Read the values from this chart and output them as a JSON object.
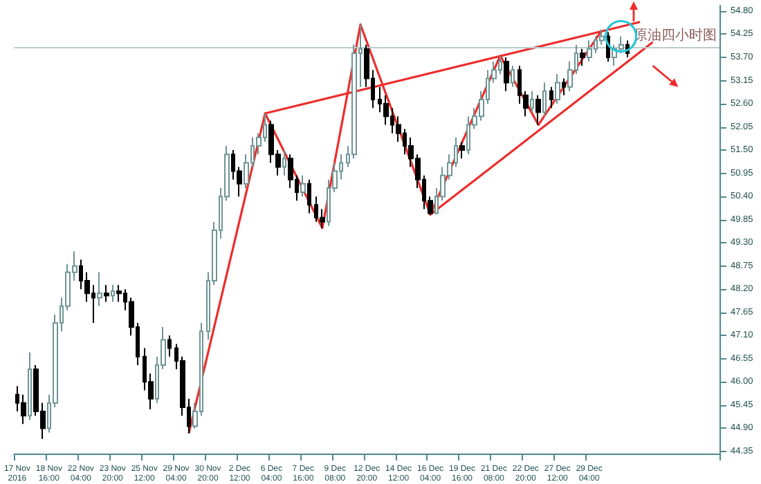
{
  "chart_data": {
    "type": "candlestick",
    "title": "原油四小时图",
    "categories": [
      "17 Nov 2016",
      null,
      null,
      null,
      null,
      "18 Nov 16:00",
      null,
      null,
      null,
      null,
      "22 Nov 04:00",
      null,
      null,
      null,
      null,
      "23 Nov 20:00",
      null,
      null,
      null,
      null,
      "25 Nov 12:00",
      null,
      null,
      null,
      null,
      "29 Nov 04:00",
      null,
      null,
      null,
      null,
      "30 Nov 20:00",
      null,
      null,
      null,
      null,
      "2 Dec 12:00",
      null,
      null,
      null,
      null,
      "6 Dec 04:00",
      null,
      null,
      null,
      null,
      "7 Dec 16:00",
      null,
      null,
      null,
      null,
      "9 Dec 08:00",
      null,
      null,
      null,
      null,
      "12 Dec 20:00",
      null,
      null,
      null,
      null,
      "14 Dec 12:00",
      null,
      null,
      null,
      null,
      "16 Dec 04:00",
      null,
      null,
      null,
      null,
      "19 Dec 16:00",
      null,
      null,
      null,
      null,
      "21 Dec 08:00",
      null,
      null,
      null,
      null,
      "22 Dec 20:00",
      null,
      null,
      null,
      null,
      "27 Dec 12:00",
      null,
      null,
      null,
      null,
      "29 Dec 04:00",
      null,
      null,
      null,
      null,
      null,
      null,
      null,
      null,
      null,
      null,
      null,
      null,
      null,
      null,
      null,
      null,
      null,
      null,
      null,
      null
    ],
    "ohlc": [
      [
        45.7,
        45.9,
        45.3,
        45.5
      ],
      [
        45.5,
        45.7,
        45.0,
        45.2
      ],
      [
        45.2,
        46.7,
        45.1,
        46.3
      ],
      [
        46.3,
        46.4,
        45.2,
        45.3
      ],
      [
        45.3,
        45.5,
        44.65,
        44.9
      ],
      [
        44.9,
        45.7,
        44.8,
        45.5
      ],
      [
        45.5,
        47.6,
        45.4,
        47.4
      ],
      [
        47.4,
        48.0,
        47.2,
        47.8
      ],
      [
        47.8,
        48.8,
        47.7,
        48.6
      ],
      [
        48.6,
        49.1,
        48.4,
        48.75
      ],
      [
        48.75,
        48.9,
        48.2,
        48.4
      ],
      [
        48.4,
        48.6,
        47.9,
        48.1
      ],
      [
        48.1,
        48.3,
        47.4,
        48.0
      ],
      [
        48.0,
        48.6,
        47.8,
        48.1
      ],
      [
        48.1,
        48.3,
        47.9,
        48.05
      ],
      [
        48.05,
        48.3,
        47.9,
        48.15
      ],
      [
        48.15,
        48.3,
        47.9,
        48.1
      ],
      [
        48.1,
        48.2,
        47.7,
        47.9
      ],
      [
        47.9,
        48.0,
        47.1,
        47.3
      ],
      [
        47.3,
        47.4,
        46.4,
        46.6
      ],
      [
        46.6,
        46.8,
        45.8,
        46.0
      ],
      [
        46.0,
        46.2,
        45.35,
        45.6
      ],
      [
        45.6,
        46.6,
        45.5,
        46.4
      ],
      [
        46.4,
        47.3,
        46.3,
        47.0
      ],
      [
        47.0,
        47.1,
        46.6,
        46.8
      ],
      [
        46.8,
        46.9,
        46.3,
        46.5
      ],
      [
        46.5,
        46.6,
        45.2,
        45.4
      ],
      [
        45.4,
        45.6,
        44.78,
        44.95
      ],
      [
        44.95,
        45.5,
        44.9,
        45.3
      ],
      [
        45.3,
        47.4,
        45.2,
        47.2
      ],
      [
        47.2,
        48.6,
        47.0,
        48.4
      ],
      [
        48.4,
        49.8,
        48.3,
        49.6
      ],
      [
        49.6,
        50.6,
        49.4,
        50.4
      ],
      [
        50.4,
        51.6,
        50.3,
        51.4
      ],
      [
        51.4,
        51.5,
        50.8,
        51.0
      ],
      [
        51.0,
        51.1,
        50.4,
        50.7
      ],
      [
        50.7,
        51.4,
        50.6,
        51.2
      ],
      [
        51.2,
        51.8,
        51.1,
        51.6
      ],
      [
        51.6,
        51.9,
        51.4,
        51.8
      ],
      [
        51.8,
        52.37,
        51.7,
        52.1
      ],
      [
        52.1,
        52.2,
        51.2,
        51.4
      ],
      [
        51.4,
        51.5,
        50.9,
        51.1
      ],
      [
        51.1,
        51.5,
        50.9,
        51.3
      ],
      [
        51.3,
        51.4,
        50.6,
        50.8
      ],
      [
        50.8,
        50.9,
        50.3,
        50.5
      ],
      [
        50.5,
        50.9,
        50.4,
        50.7
      ],
      [
        50.7,
        50.8,
        50.0,
        50.2
      ],
      [
        50.2,
        50.4,
        49.8,
        49.9
      ],
      [
        49.9,
        50.1,
        49.65,
        49.8
      ],
      [
        49.8,
        50.8,
        49.7,
        50.6
      ],
      [
        50.6,
        51.2,
        50.5,
        51.0
      ],
      [
        51.0,
        51.4,
        50.8,
        51.2
      ],
      [
        51.2,
        51.6,
        51.1,
        51.4
      ],
      [
        51.4,
        54.0,
        51.3,
        53.8
      ],
      [
        53.8,
        54.48,
        53.0,
        53.9
      ],
      [
        53.9,
        54.0,
        53.0,
        53.2
      ],
      [
        53.2,
        53.4,
        52.5,
        52.7
      ],
      [
        52.7,
        53.0,
        52.4,
        52.6
      ],
      [
        52.6,
        52.8,
        52.1,
        52.3
      ],
      [
        52.3,
        52.5,
        51.9,
        52.1
      ],
      [
        52.1,
        52.3,
        51.7,
        51.9
      ],
      [
        51.9,
        52.0,
        51.4,
        51.6
      ],
      [
        51.6,
        51.8,
        51.1,
        51.3
      ],
      [
        51.3,
        51.4,
        50.6,
        50.8
      ],
      [
        50.8,
        50.9,
        50.1,
        50.3
      ],
      [
        50.3,
        50.4,
        49.97,
        50.0
      ],
      [
        50.0,
        50.6,
        49.98,
        50.4
      ],
      [
        50.4,
        51.1,
        50.3,
        50.9
      ],
      [
        50.9,
        51.4,
        50.8,
        51.2
      ],
      [
        51.2,
        51.8,
        51.1,
        51.6
      ],
      [
        51.6,
        51.7,
        51.3,
        51.5
      ],
      [
        51.5,
        52.3,
        51.4,
        52.1
      ],
      [
        52.1,
        52.5,
        52.0,
        52.3
      ],
      [
        52.3,
        52.9,
        52.2,
        52.7
      ],
      [
        52.7,
        53.4,
        52.6,
        53.2
      ],
      [
        53.2,
        53.6,
        53.1,
        53.4
      ],
      [
        53.4,
        53.74,
        53.3,
        53.6
      ],
      [
        53.6,
        53.7,
        52.9,
        53.1
      ],
      [
        53.1,
        53.5,
        53.0,
        53.4
      ],
      [
        53.4,
        53.5,
        52.6,
        52.8
      ],
      [
        52.8,
        52.9,
        52.3,
        52.5
      ],
      [
        52.5,
        52.9,
        52.4,
        52.7
      ],
      [
        52.7,
        52.8,
        52.1,
        52.4
      ],
      [
        52.4,
        53.1,
        52.3,
        52.9
      ],
      [
        52.9,
        53.0,
        52.5,
        52.7
      ],
      [
        52.7,
        53.3,
        52.6,
        53.1
      ],
      [
        53.1,
        53.2,
        52.8,
        53.0
      ],
      [
        53.0,
        53.6,
        52.9,
        53.4
      ],
      [
        53.4,
        54.0,
        53.3,
        53.8
      ],
      [
        53.8,
        53.9,
        53.5,
        53.7
      ],
      [
        53.7,
        54.1,
        53.6,
        53.9
      ],
      [
        53.9,
        54.2,
        53.8,
        54.1
      ],
      [
        54.1,
        54.35,
        54.0,
        54.2
      ],
      [
        54.2,
        54.3,
        53.6,
        53.7
      ],
      [
        53.7,
        54.0,
        53.5,
        53.9
      ],
      [
        53.9,
        54.2,
        53.8,
        54.0
      ],
      [
        54.0,
        54.1,
        53.7,
        53.8
      ],
      null,
      null,
      null,
      null,
      null,
      null,
      null,
      null,
      null,
      null,
      null,
      null,
      null,
      null
    ],
    "series": [
      {
        "type": "line",
        "color": "#ee2c2c",
        "values": [
          null,
          null,
          null,
          null,
          null,
          null,
          null,
          null,
          null,
          null,
          null,
          null,
          null,
          null,
          null,
          null,
          null,
          null,
          null,
          null,
          null,
          null,
          null,
          null,
          null,
          null,
          null,
          44.78,
          null,
          null,
          null,
          null,
          null,
          null,
          null,
          null,
          null,
          null,
          null,
          52.37,
          null,
          null,
          null,
          null,
          null,
          null,
          null,
          null,
          49.65,
          null,
          null,
          null,
          null,
          null,
          54.48,
          null,
          null,
          null,
          null,
          null,
          null,
          null,
          null,
          null,
          null,
          49.97,
          null,
          null,
          null,
          null,
          null,
          null,
          null,
          null,
          null,
          null,
          53.74,
          null,
          null,
          null,
          null,
          null,
          52.1,
          null,
          null,
          null,
          null,
          null,
          null,
          null,
          null,
          null,
          54.35,
          null,
          null,
          null,
          null,
          null,
          null,
          null,
          null,
          null,
          null,
          null,
          null,
          null,
          null,
          null,
          null,
          null,
          null
        ]
      },
      {
        "type": "line",
        "color": "#ee2c2c",
        "values": [
          null,
          null,
          null,
          null,
          null,
          null,
          null,
          null,
          null,
          null,
          null,
          null,
          null,
          null,
          null,
          null,
          null,
          null,
          null,
          null,
          null,
          null,
          null,
          null,
          null,
          null,
          null,
          null,
          null,
          null,
          null,
          null,
          null,
          null,
          null,
          null,
          null,
          null,
          null,
          52.37,
          null,
          null,
          null,
          null,
          null,
          null,
          null,
          null,
          null,
          null,
          null,
          null,
          null,
          null,
          null,
          null,
          null,
          null,
          null,
          null,
          null,
          null,
          null,
          null,
          null,
          null,
          null,
          null,
          null,
          null,
          null,
          null,
          null,
          null,
          null,
          null,
          null,
          null,
          null,
          null,
          null,
          null,
          null,
          null,
          null,
          null,
          null,
          null,
          null,
          null,
          null,
          null,
          null,
          null,
          null,
          null,
          null,
          null,
          54.54,
          null,
          null,
          null,
          null,
          null,
          null,
          null,
          null,
          null,
          null,
          null,
          null
        ]
      },
      {
        "type": "line",
        "color": "#ee2c2c",
        "values": [
          null,
          null,
          null,
          null,
          null,
          null,
          null,
          null,
          null,
          null,
          null,
          null,
          null,
          null,
          null,
          null,
          null,
          null,
          null,
          null,
          null,
          null,
          null,
          null,
          null,
          null,
          null,
          null,
          null,
          null,
          null,
          null,
          null,
          null,
          null,
          null,
          null,
          null,
          null,
          null,
          null,
          null,
          null,
          null,
          null,
          null,
          null,
          null,
          null,
          null,
          null,
          null,
          null,
          null,
          null,
          null,
          null,
          null,
          null,
          null,
          null,
          null,
          null,
          null,
          null,
          49.97,
          null,
          null,
          null,
          null,
          null,
          null,
          null,
          null,
          null,
          null,
          null,
          null,
          null,
          null,
          null,
          null,
          null,
          null,
          null,
          null,
          null,
          null,
          null,
          null,
          null,
          null,
          null,
          null,
          null,
          null,
          null,
          null,
          null,
          null,
          54.06,
          null,
          null,
          null,
          null,
          null,
          null,
          null,
          null,
          null,
          null
        ]
      }
    ],
    "ylim": [
      44.3,
      54.93
    ],
    "yticks": [
      {
        "value": 54.8,
        "label": "54.80"
      },
      {
        "value": 54.25,
        "label": "54.25"
      },
      {
        "value": 53.7,
        "label": "53.70"
      },
      {
        "value": 53.15,
        "label": "53.15"
      },
      {
        "value": 52.6,
        "label": "52.60"
      },
      {
        "value": 52.05,
        "label": "52.05"
      },
      {
        "value": 51.5,
        "label": "51.50"
      },
      {
        "value": 50.95,
        "label": "50.95"
      },
      {
        "value": 50.4,
        "label": "50.40"
      },
      {
        "value": 49.85,
        "label": "49.85"
      },
      {
        "value": 49.3,
        "label": "49.30"
      },
      {
        "value": 48.75,
        "label": "48.75"
      },
      {
        "value": 48.2,
        "label": "48.20"
      },
      {
        "value": 47.65,
        "label": "47.65"
      },
      {
        "value": 47.1,
        "label": "47.10"
      },
      {
        "value": 46.55,
        "label": "46.55"
      },
      {
        "value": 46.0,
        "label": "46.00"
      },
      {
        "value": 45.45,
        "label": "45.45"
      },
      {
        "value": 44.9,
        "label": "44.90"
      },
      {
        "value": 44.35,
        "label": "44.35"
      }
    ],
    "ref_lines": [
      {
        "axis": "y",
        "value": 53.94,
        "color": "#b8cccc"
      }
    ],
    "grid": false
  }
}
